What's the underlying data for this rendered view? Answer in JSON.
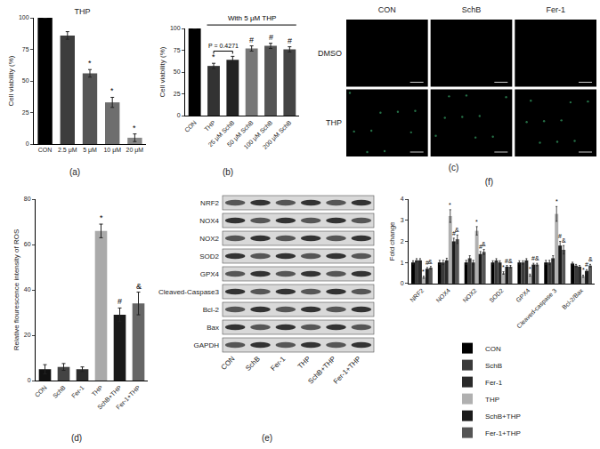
{
  "chart_data": [
    {
      "label": "(a)",
      "type": "bar",
      "title": "THP",
      "categories": [
        "CON",
        "2.5 μM",
        "5 μM",
        "10 μM",
        "20 μM"
      ],
      "values": [
        100,
        86,
        56,
        33,
        5
      ],
      "errors": [
        0,
        3,
        3,
        4,
        3
      ],
      "colors": [
        "#000000",
        "#3d3d3d",
        "#555555",
        "#6e6e6e",
        "#888888"
      ],
      "marks": [
        null,
        null,
        "*",
        "*",
        "*"
      ],
      "y_label": "Cell viability (%)",
      "ylim": [
        0,
        100
      ],
      "yticks": [
        0,
        25,
        50,
        75,
        100
      ]
    },
    {
      "label": "(b)",
      "type": "bar",
      "categories": [
        "CON",
        "THP",
        "25 μM SchB",
        "50 μM SchB",
        "100 μM SchB",
        "200 μM SchB"
      ],
      "values": [
        100,
        57,
        64,
        77,
        80,
        76
      ],
      "errors": [
        0,
        3,
        4,
        3,
        3,
        3
      ],
      "colors": [
        "#000000",
        "#333333",
        "#222222",
        "#777777",
        "#555555",
        "#444444"
      ],
      "marks": [
        null,
        "*",
        null,
        "#",
        "#",
        "#"
      ],
      "annotations": [
        {
          "type": "header",
          "text": "With 5 μM THP",
          "from": "THP",
          "to": "200 μM SchB"
        },
        {
          "type": "bracket",
          "text": "P = 0.4271",
          "from": "THP",
          "to": "25 μM SchB"
        }
      ],
      "y_label": "Cell viability (%)",
      "ylim": [
        0,
        100
      ],
      "yticks": [
        0,
        25,
        50,
        75,
        100
      ]
    },
    {
      "label": "(d)",
      "type": "bar",
      "categories": [
        "CON",
        "SchB",
        "Fer-1",
        "THP",
        "SchB+THP",
        "Fer-1+THP"
      ],
      "values": [
        5,
        6,
        5,
        66,
        29,
        34
      ],
      "errors": [
        2,
        1.5,
        1,
        3,
        3,
        5
      ],
      "colors": [
        "#111111",
        "#444444",
        "#2b2b2b",
        "#aaaaaa",
        "#1a1a1a",
        "#666666"
      ],
      "marks": [
        null,
        null,
        null,
        "*",
        "#",
        "&"
      ],
      "y_label": "Relative flourescence intensity of ROS",
      "ylim": [
        0,
        80
      ],
      "yticks": [
        0,
        20,
        40,
        60,
        80
      ]
    },
    {
      "label": "(f)",
      "type": "bar",
      "categories": [
        "NRF2",
        "NOX4",
        "NOX2",
        "SOD2",
        "GPX4",
        "Cleaved-caspase 3",
        "Bcl-2/Bax"
      ],
      "series": [
        {
          "name": "CON",
          "color": "#000000",
          "values": [
            1.0,
            1.0,
            1.0,
            1.0,
            1.0,
            1.0,
            0.95
          ],
          "errors": [
            0.08,
            0.1,
            0.1,
            0.08,
            0.08,
            0.1,
            0.06
          ],
          "marks": [
            null,
            null,
            null,
            null,
            null,
            null,
            null
          ]
        },
        {
          "name": "SchB",
          "color": "#3a3a3a",
          "values": [
            1.1,
            1.0,
            1.2,
            1.1,
            1.0,
            1.0,
            0.85
          ],
          "errors": [
            0.08,
            0.1,
            0.12,
            0.08,
            0.08,
            0.1,
            0.06
          ],
          "marks": [
            null,
            null,
            null,
            null,
            null,
            null,
            null
          ]
        },
        {
          "name": "Fer-1",
          "color": "#2a2a2a",
          "values": [
            1.1,
            1.1,
            1.0,
            1.0,
            1.1,
            1.2,
            0.8
          ],
          "errors": [
            0.08,
            0.1,
            0.1,
            0.08,
            0.08,
            0.12,
            0.06
          ],
          "marks": [
            null,
            null,
            null,
            null,
            null,
            null,
            null
          ]
        },
        {
          "name": "THP",
          "color": "#b0b0b0",
          "values": [
            0.3,
            3.2,
            2.5,
            0.5,
            0.4,
            3.3,
            0.35
          ],
          "errors": [
            0.05,
            0.3,
            0.2,
            0.06,
            0.05,
            0.35,
            0.05
          ],
          "marks": [
            "*",
            "*",
            "*",
            "*",
            "*",
            "*",
            "*"
          ]
        },
        {
          "name": "SchB+THP",
          "color": "#1a1a1a",
          "values": [
            0.7,
            2.0,
            1.4,
            0.8,
            0.9,
            1.8,
            0.6
          ],
          "errors": [
            0.06,
            0.15,
            0.12,
            0.06,
            0.06,
            0.2,
            0.06
          ],
          "marks": [
            "#",
            "#",
            "#",
            "#",
            "#",
            "#",
            "#"
          ]
        },
        {
          "name": "Fer-1+THP",
          "color": "#555555",
          "values": [
            0.75,
            2.1,
            1.5,
            0.8,
            0.9,
            1.6,
            0.85
          ],
          "errors": [
            0.06,
            0.2,
            0.12,
            0.06,
            0.06,
            0.2,
            0.06
          ],
          "marks": [
            "&",
            "&",
            "&",
            "&",
            "&",
            "&",
            "&"
          ]
        }
      ],
      "y_label": "Fold change",
      "ylim": [
        0,
        4
      ],
      "yticks": [
        0,
        1,
        2,
        3,
        4
      ],
      "legend": "bottom"
    }
  ],
  "image_panels": [
    {
      "label": "(c)",
      "columns": [
        "CON",
        "SchB",
        "Fer-1"
      ],
      "rows": [
        "DMSO",
        "THP"
      ]
    },
    {
      "label": "(e)",
      "rows": [
        "NRF2",
        "NOX4",
        "NOX2",
        "SOD2",
        "GPX4",
        "Cleaved-Caspase3",
        "Bcl-2",
        "Bax",
        "GAPDH"
      ],
      "columns": [
        "CON",
        "SchB",
        "Fer-1",
        "THP",
        "SchB+THP",
        "Fer-1+THP"
      ]
    }
  ]
}
